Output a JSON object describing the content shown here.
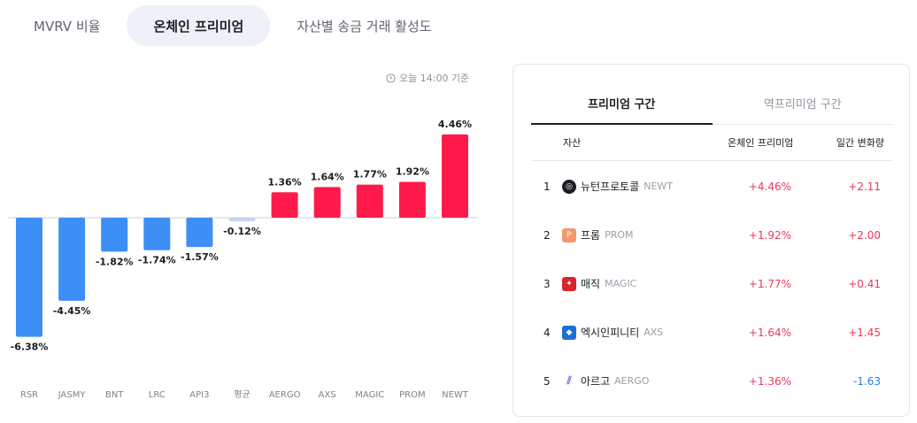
{
  "tabs": [
    {
      "label": "MVRV 비율",
      "active": false
    },
    {
      "label": "온체인 프리미엄",
      "active": true
    },
    {
      "label": "자산별 송금 거래 활성도",
      "active": false
    }
  ],
  "timestamp": "오늘 14:00 기준",
  "chart_data": {
    "type": "bar",
    "categories": [
      "RSR",
      "JASMY",
      "BNT",
      "LRC",
      "API3",
      "평균",
      "AERGO",
      "AXS",
      "MAGIC",
      "PROM",
      "NEWT"
    ],
    "values": [
      -6.38,
      -4.45,
      -1.82,
      -1.74,
      -1.57,
      -0.12,
      1.36,
      1.64,
      1.77,
      1.92,
      4.46
    ],
    "labels": [
      "-6.38%",
      "-4.45%",
      "-1.82%",
      "-1.74%",
      "-1.57%",
      "-0.12%",
      "1.36%",
      "1.64%",
      "1.77%",
      "1.92%",
      "4.46%"
    ],
    "title": "",
    "xlabel": "",
    "ylabel": "",
    "grid": false,
    "colors": {
      "positive": "#ff1a4b",
      "negative": "#3d8ff5",
      "average": "#c5d6ea"
    }
  },
  "ranking": {
    "tabs": [
      {
        "label": "프리미엄 구간",
        "active": true
      },
      {
        "label": "역프리미엄 구간",
        "active": false
      }
    ],
    "headers": {
      "asset": "자산",
      "premium": "온체인 프리미엄",
      "change": "일간 변화량"
    },
    "rows": [
      {
        "rank": "1",
        "name": "뉴턴프로토콜",
        "ticker": "NEWT",
        "premium": "+4.46%",
        "change": "+2.11",
        "direction": "pos",
        "icon": "newton-icon",
        "icon_color": "#1b1d22",
        "icon_glyph": "◎"
      },
      {
        "rank": "2",
        "name": "프롬",
        "ticker": "PROM",
        "premium": "+1.92%",
        "change": "+2.00",
        "direction": "pos",
        "icon": "prom-icon",
        "icon_color": "#f29a6e",
        "icon_glyph": "P"
      },
      {
        "rank": "3",
        "name": "매직",
        "ticker": "MAGIC",
        "premium": "+1.77%",
        "change": "+0.41",
        "direction": "pos",
        "icon": "magic-icon",
        "icon_color": "#d8262c",
        "icon_glyph": "✦"
      },
      {
        "rank": "4",
        "name": "엑시인피니티",
        "ticker": "AXS",
        "premium": "+1.64%",
        "change": "+1.45",
        "direction": "pos",
        "icon": "axs-icon",
        "icon_color": "#1c6fd6",
        "icon_glyph": "◆"
      },
      {
        "rank": "5",
        "name": "아르고",
        "ticker": "AERGO",
        "premium": "+1.36%",
        "change": "-1.63",
        "direction": "neg",
        "icon": "aergo-icon",
        "icon_color": "#ffffff",
        "icon_glyph": "⫽"
      }
    ]
  }
}
